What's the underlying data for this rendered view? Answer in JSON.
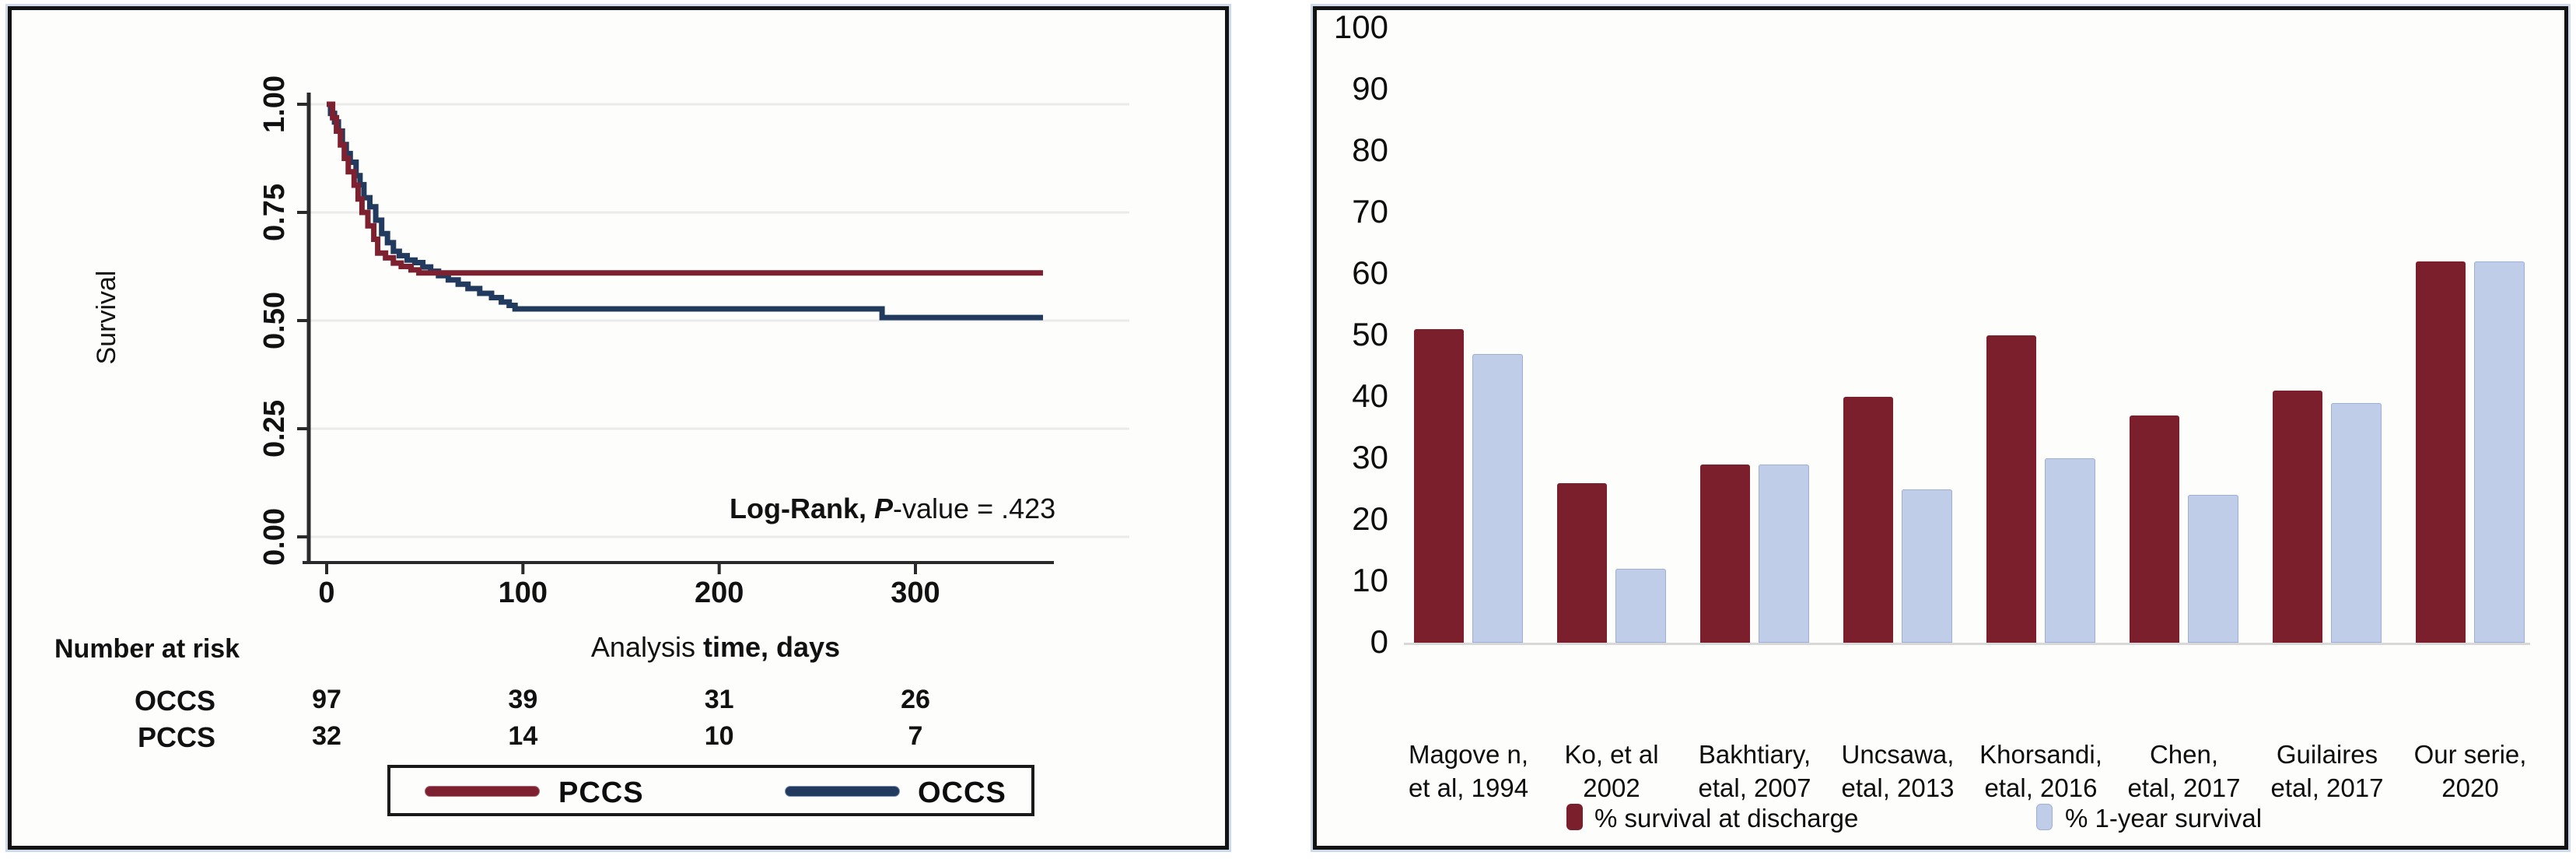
{
  "figure": {
    "panels": {
      "km": {
        "ylabel": "Survival",
        "xlabel_regular": "Analysis",
        "xlabel_bold": " time, days",
        "annotation_bold": "Log-Rank,",
        "annotation_italic": " P",
        "annotation_rest": "-value = .423",
        "risk_title": "Number at risk",
        "legend": [
          {
            "label": "PCCS",
            "color": "#7d2130"
          },
          {
            "label": "OCCS",
            "color": "#223a5e"
          }
        ]
      },
      "bar": {
        "legend": [
          {
            "label": "% survival at discharge",
            "color": "#7c1f2d"
          },
          {
            "label": "% 1-year survival",
            "color": "#bfcde9"
          }
        ]
      }
    }
  },
  "colors": {
    "maroon": "#7c1f2d",
    "km_red": "#7d2130",
    "navy": "#223a5e",
    "light_blue": "#bfcde9",
    "light_blue_border": "#9fb0d8",
    "grid": "#ebebeb",
    "axis": "#2a2a2a",
    "baseline": "#d8d8d8"
  },
  "chart_data": [
    {
      "type": "line",
      "subtype": "kaplan-meier-step",
      "title": "",
      "xlabel": "Analysis time, days",
      "ylabel": "Survival",
      "xlim": [
        0,
        365
      ],
      "ylim": [
        0,
        1
      ],
      "xticks": [
        0,
        100,
        200,
        300
      ],
      "yticks": [
        1.0,
        0.75,
        0.5,
        0.25,
        0.0
      ],
      "yticklabels": [
        "1.00",
        "0.75",
        "0.50",
        "0.25",
        "0.00"
      ],
      "grid": "horizontal",
      "annotation": "Log-Rank, P-value = .423",
      "legend_position": "bottom-box",
      "series": [
        {
          "name": "OCCS",
          "color": "#223a5e",
          "points": [
            [
              0,
              1.0
            ],
            [
              2,
              0.979
            ],
            [
              4,
              0.959
            ],
            [
              6,
              0.938
            ],
            [
              8,
              0.907
            ],
            [
              10,
              0.886
            ],
            [
              12,
              0.866
            ],
            [
              15,
              0.835
            ],
            [
              17,
              0.814
            ],
            [
              19,
              0.784
            ],
            [
              22,
              0.763
            ],
            [
              25,
              0.732
            ],
            [
              28,
              0.701
            ],
            [
              31,
              0.68
            ],
            [
              34,
              0.66
            ],
            [
              37,
              0.65
            ],
            [
              41,
              0.64
            ],
            [
              45,
              0.634
            ],
            [
              49,
              0.624
            ],
            [
              53,
              0.614
            ],
            [
              57,
              0.604
            ],
            [
              62,
              0.594
            ],
            [
              67,
              0.584
            ],
            [
              72,
              0.574
            ],
            [
              78,
              0.563
            ],
            [
              84,
              0.553
            ],
            [
              89,
              0.543
            ],
            [
              93,
              0.535
            ],
            [
              96,
              0.527
            ],
            [
              283,
              0.527
            ],
            [
              283,
              0.507
            ],
            [
              365,
              0.507
            ]
          ]
        },
        {
          "name": "PCCS",
          "color": "#7d2130",
          "points": [
            [
              0,
              1.0
            ],
            [
              3,
              0.969
            ],
            [
              5,
              0.938
            ],
            [
              7,
              0.906
            ],
            [
              9,
              0.875
            ],
            [
              11,
              0.844
            ],
            [
              14,
              0.813
            ],
            [
              16,
              0.781
            ],
            [
              18,
              0.75
            ],
            [
              21,
              0.719
            ],
            [
              24,
              0.688
            ],
            [
              26,
              0.656
            ],
            [
              30,
              0.645
            ],
            [
              34,
              0.633
            ],
            [
              38,
              0.625
            ],
            [
              43,
              0.617
            ],
            [
              47,
              0.61
            ],
            [
              365,
              0.61
            ]
          ]
        }
      ],
      "number_at_risk": {
        "title": "Number at risk",
        "times": [
          0,
          100,
          200,
          300
        ],
        "rows": [
          {
            "label": "OCCS",
            "values": [
              "97",
              "39",
              "31",
              "26"
            ]
          },
          {
            "label": "PCCS",
            "values": [
              "32",
              "14",
              "10",
              "7"
            ]
          }
        ]
      }
    },
    {
      "type": "bar",
      "categories": [
        [
          "Magove n,",
          "et al, 1994"
        ],
        [
          "Ko, et al",
          "2002"
        ],
        [
          "Bakhtiary,",
          "etal, 2007"
        ],
        [
          "Uncsawa,",
          "etal, 2013"
        ],
        [
          "Khorsandi,",
          "etal, 2016"
        ],
        [
          "Chen,",
          "etal, 2017"
        ],
        [
          "Guilaires",
          "etal, 2017"
        ],
        [
          "Our serie,",
          "2020"
        ]
      ],
      "series": [
        {
          "name": "% survival at discharge",
          "color": "#7c1f2d",
          "values": [
            51,
            26,
            29,
            40,
            50,
            37,
            41,
            62
          ]
        },
        {
          "name": "% 1-year survival",
          "color": "#bfcde9",
          "values": [
            47,
            12,
            29,
            25,
            30,
            24,
            39,
            62
          ]
        }
      ],
      "ylim": [
        0,
        100
      ],
      "yticks": [
        0,
        10,
        20,
        30,
        40,
        50,
        60,
        70,
        80,
        90,
        100
      ],
      "grid": false,
      "legend_position": "bottom"
    }
  ]
}
